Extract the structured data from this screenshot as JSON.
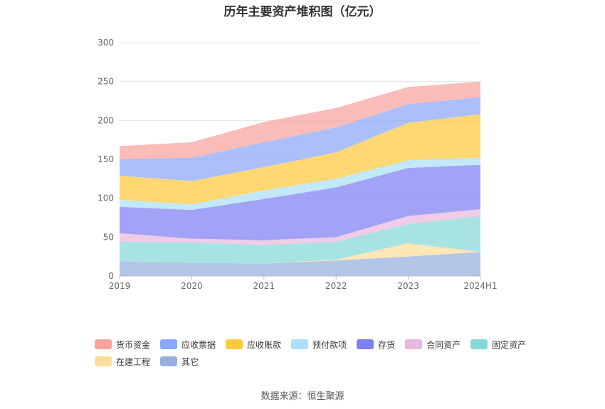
{
  "page": {
    "title": "历年主要资产堆积图（亿元）",
    "source": "数据来源：恒生聚源"
  },
  "chart_data": {
    "type": "area",
    "stacked": true,
    "title": "历年主要资产堆积图（亿元）",
    "xlabel": "",
    "ylabel": "",
    "x": [
      "2019",
      "2020",
      "2021",
      "2022",
      "2023",
      "2024H1"
    ],
    "ylim": [
      0,
      300
    ],
    "yticks": [
      "0",
      "50",
      "100",
      "150",
      "200",
      "250",
      "300"
    ],
    "grid": true,
    "legend_position": "bottom",
    "series": [
      {
        "name": "其它",
        "color": "#95b0df",
        "values": [
          19,
          17,
          16,
          20,
          25,
          31
        ]
      },
      {
        "name": "在建工程",
        "color": "#fedc9a",
        "values": [
          0,
          0,
          0,
          1,
          17,
          0
        ]
      },
      {
        "name": "固定资产",
        "color": "#86d8d8",
        "values": [
          25,
          26,
          24,
          23,
          25,
          46
        ]
      },
      {
        "name": "合同资产",
        "color": "#eab8dd",
        "values": [
          11,
          5,
          6,
          6,
          10,
          9
        ]
      },
      {
        "name": "存货",
        "color": "#7e7ff2",
        "values": [
          34,
          37,
          53,
          64,
          62,
          57
        ]
      },
      {
        "name": "预付款项",
        "color": "#a9e1f8",
        "values": [
          9,
          7,
          11,
          11,
          10,
          9
        ]
      },
      {
        "name": "应收账款",
        "color": "#ffc93f",
        "values": [
          31,
          30,
          30,
          34,
          48,
          56
        ]
      },
      {
        "name": "应收票据",
        "color": "#8aa8f8",
        "values": [
          21,
          30,
          32,
          32,
          24,
          22
        ]
      },
      {
        "name": "货币资金",
        "color": "#f8a29c",
        "values": [
          17,
          20,
          26,
          25,
          22,
          20
        ]
      }
    ]
  },
  "legend": {
    "row1": [
      {
        "name": "货币资金",
        "color": "#f8a29c"
      },
      {
        "name": "应收票据",
        "color": "#8aa8f8"
      },
      {
        "name": "应收账款",
        "color": "#ffc93f"
      },
      {
        "name": "预付款项",
        "color": "#a9e1f8"
      },
      {
        "name": "存货",
        "color": "#7e7ff2"
      },
      {
        "name": "合同资产",
        "color": "#eab8dd"
      },
      {
        "name": "固定资产",
        "color": "#86d8d8"
      }
    ],
    "row2": [
      {
        "name": "在建工程",
        "color": "#fedc9a"
      },
      {
        "name": "其它",
        "color": "#95b0df"
      }
    ]
  }
}
